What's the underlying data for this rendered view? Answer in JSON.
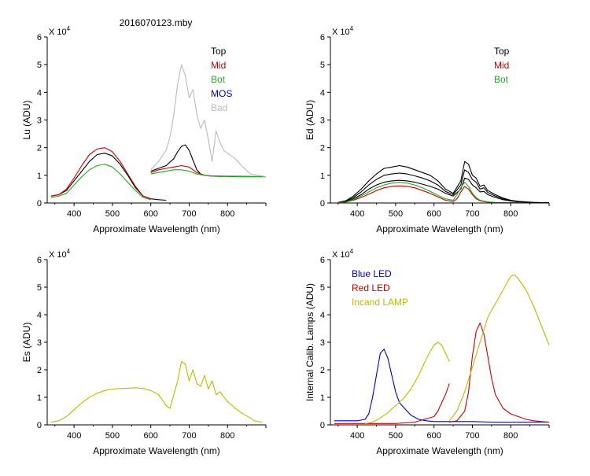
{
  "figure_title": "2016070123.mby",
  "chart_data": [
    {
      "id": "lu",
      "type": "line",
      "ylabel": "Lu (ADU)",
      "xlabel": "Approximate Wavelength (nm)",
      "exponent_label": "X 10",
      "exponent_power": "4",
      "xlim": [
        330,
        900
      ],
      "ylim": [
        0,
        6
      ],
      "xticks": [
        "400",
        "500",
        "600",
        "700",
        "800"
      ],
      "yticks": [
        "0",
        "1",
        "2",
        "3",
        "4",
        "5",
        "6"
      ],
      "legend": [
        "Top",
        "Mid",
        "Bot",
        "MOS",
        "Bad"
      ],
      "series": [
        {
          "name": "Top",
          "color": "#000000",
          "x": [
            340,
            360,
            380,
            400,
            420,
            440,
            460,
            480,
            500,
            520,
            540,
            560,
            580,
            600,
            620,
            640
          ],
          "y": [
            0.25,
            0.3,
            0.45,
            0.8,
            1.15,
            1.5,
            1.75,
            1.8,
            1.7,
            1.4,
            1.0,
            0.55,
            0.25,
            0.15,
            0.12,
            0.1
          ]
        },
        {
          "name": "Top",
          "color": "#000000",
          "x": [
            600,
            620,
            640,
            660,
            670,
            680,
            690,
            700,
            710,
            720,
            730,
            740,
            750,
            760,
            780,
            800,
            820,
            840,
            860,
            880,
            900
          ],
          "y": [
            1.15,
            1.25,
            1.35,
            1.6,
            1.85,
            2.05,
            2.1,
            1.9,
            1.55,
            1.2,
            1.05,
            1.0,
            0.98,
            0.97,
            0.96,
            0.96,
            0.95,
            0.95,
            0.95,
            0.95,
            0.95
          ]
        },
        {
          "name": "Mid",
          "color": "#cc0000",
          "x": [
            340,
            360,
            380,
            400,
            420,
            440,
            460,
            480,
            500,
            520,
            540,
            560,
            580,
            600
          ],
          "y": [
            0.25,
            0.3,
            0.5,
            0.9,
            1.35,
            1.75,
            1.95,
            2.0,
            1.85,
            1.5,
            1.05,
            0.6,
            0.25,
            0.15
          ]
        },
        {
          "name": "Mid",
          "color": "#cc0000",
          "x": [
            600,
            620,
            640,
            660,
            680,
            700,
            720,
            740,
            760,
            800,
            850,
            900
          ],
          "y": [
            1.1,
            1.2,
            1.25,
            1.3,
            1.35,
            1.3,
            1.1,
            1.0,
            0.98,
            0.97,
            0.96,
            0.95
          ]
        },
        {
          "name": "Bot",
          "color": "#22aa22",
          "x": [
            340,
            360,
            380,
            400,
            420,
            440,
            460,
            480,
            500,
            520,
            540,
            560,
            580,
            600
          ],
          "y": [
            0.2,
            0.25,
            0.35,
            0.65,
            0.95,
            1.2,
            1.35,
            1.4,
            1.3,
            1.05,
            0.75,
            0.45,
            0.2,
            0.12
          ]
        },
        {
          "name": "Bot",
          "color": "#22aa22",
          "x": [
            600,
            620,
            640,
            660,
            680,
            700,
            720,
            740,
            760,
            800,
            850,
            900
          ],
          "y": [
            1.05,
            1.1,
            1.15,
            1.2,
            1.2,
            1.15,
            1.05,
            1.0,
            0.97,
            0.96,
            0.95,
            0.95
          ]
        },
        {
          "name": "Bad",
          "color": "#bbbbbb",
          "x": [
            600,
            620,
            640,
            650,
            660,
            670,
            680,
            690,
            700,
            710,
            720,
            730,
            740,
            750,
            760,
            770,
            780,
            790,
            800,
            820,
            840,
            860,
            880,
            900
          ],
          "y": [
            1.2,
            1.5,
            1.9,
            2.4,
            3.2,
            4.3,
            5.0,
            4.6,
            3.8,
            4.1,
            3.2,
            2.7,
            3.0,
            2.3,
            1.5,
            2.6,
            2.2,
            1.9,
            1.8,
            1.6,
            1.3,
            1.05,
            1.0,
            0.95
          ]
        }
      ]
    },
    {
      "id": "ed",
      "type": "line",
      "ylabel": "Ed  (ADU)",
      "xlabel": "Approximate Wavelength (nm)",
      "exponent_label": "X 10",
      "exponent_power": "4",
      "xlim": [
        330,
        900
      ],
      "ylim": [
        0,
        6
      ],
      "xticks": [
        "400",
        "500",
        "600",
        "700",
        "800"
      ],
      "yticks": [
        "0",
        "1",
        "2",
        "3",
        "4",
        "5",
        "6"
      ],
      "legend": [
        "Top",
        "Mid",
        "Bot"
      ],
      "series": [
        {
          "name": "Top",
          "color": "#000000",
          "x": [
            350,
            370,
            390,
            410,
            430,
            450,
            470,
            490,
            510,
            530,
            550,
            570,
            590,
            610,
            630,
            650,
            670,
            680,
            690,
            700,
            710,
            720,
            730,
            740,
            760,
            780,
            800,
            820,
            840,
            860,
            880,
            900
          ],
          "y": [
            0.02,
            0.08,
            0.25,
            0.5,
            0.8,
            1.05,
            1.25,
            1.3,
            1.35,
            1.3,
            1.2,
            1.1,
            1.0,
            0.8,
            0.5,
            0.35,
            0.8,
            1.5,
            1.4,
            1.0,
            0.9,
            0.6,
            0.65,
            0.45,
            0.3,
            0.18,
            0.1,
            0.06,
            0.04,
            0.02,
            0.01,
            0.01
          ]
        },
        {
          "name": "Top",
          "color": "#000000",
          "x": [
            350,
            370,
            390,
            410,
            430,
            450,
            470,
            490,
            510,
            530,
            550,
            570,
            590,
            610,
            630,
            650,
            670,
            680,
            690,
            700,
            710,
            720,
            730,
            740,
            760,
            780,
            800,
            820,
            840,
            860,
            880,
            900
          ],
          "y": [
            0.01,
            0.06,
            0.2,
            0.4,
            0.65,
            0.85,
            1.0,
            1.05,
            1.08,
            1.05,
            0.98,
            0.9,
            0.8,
            0.65,
            0.42,
            0.3,
            0.65,
            1.2,
            1.1,
            0.85,
            0.75,
            0.5,
            0.55,
            0.38,
            0.25,
            0.15,
            0.08,
            0.05,
            0.03,
            0.02,
            0.01,
            0.01
          ]
        },
        {
          "name": "Top",
          "color": "#000000",
          "x": [
            350,
            370,
            390,
            410,
            430,
            450,
            470,
            490,
            510,
            530,
            550,
            570,
            590,
            610,
            630,
            650,
            670,
            680,
            690,
            700,
            710,
            720,
            730,
            740,
            760,
            780,
            800,
            820,
            840,
            860,
            880,
            900
          ],
          "y": [
            0.01,
            0.04,
            0.15,
            0.3,
            0.5,
            0.65,
            0.75,
            0.8,
            0.82,
            0.8,
            0.75,
            0.68,
            0.6,
            0.5,
            0.35,
            0.25,
            0.5,
            0.9,
            0.85,
            0.65,
            0.55,
            0.4,
            0.42,
            0.3,
            0.2,
            0.12,
            0.07,
            0.04,
            0.02,
            0.01,
            0.01,
            0.01
          ]
        },
        {
          "name": "Mid",
          "color": "#cc0000",
          "x": [
            350,
            370,
            390,
            410,
            430,
            450,
            470,
            490,
            510,
            530,
            550,
            570,
            590,
            610,
            630,
            650,
            660,
            670,
            680,
            690,
            700,
            710,
            720,
            740,
            760,
            800,
            850,
            900
          ],
          "y": [
            0.01,
            0.03,
            0.1,
            0.2,
            0.32,
            0.45,
            0.55,
            0.6,
            0.62,
            0.6,
            0.55,
            0.45,
            0.35,
            0.22,
            0.1,
            0.05,
            0.15,
            0.4,
            0.6,
            0.5,
            0.3,
            0.15,
            0.08,
            0.03,
            0.01,
            0.01,
            0.0,
            0.0
          ]
        },
        {
          "name": "Bot",
          "color": "#22aa22",
          "x": [
            350,
            370,
            390,
            410,
            430,
            450,
            470,
            490,
            510,
            530,
            550,
            570,
            590,
            610,
            630,
            650,
            660,
            670,
            680,
            690,
            700,
            710,
            720,
            740,
            760,
            800,
            850,
            900
          ],
          "y": [
            0.01,
            0.03,
            0.12,
            0.25,
            0.4,
            0.55,
            0.65,
            0.72,
            0.75,
            0.72,
            0.65,
            0.55,
            0.42,
            0.28,
            0.15,
            0.1,
            0.3,
            0.55,
            0.75,
            0.6,
            0.35,
            0.2,
            0.1,
            0.04,
            0.02,
            0.01,
            0.0,
            0.0
          ]
        }
      ]
    },
    {
      "id": "es",
      "type": "line",
      "ylabel": "Es  (ADU)",
      "xlabel": "Approximate Wavelength (nm)",
      "exponent_label": "X 10",
      "exponent_power": "4",
      "xlim": [
        330,
        900
      ],
      "ylim": [
        0,
        6
      ],
      "xticks": [
        "400",
        "500",
        "600",
        "700",
        "800"
      ],
      "yticks": [
        "0",
        "1",
        "2",
        "3",
        "4",
        "5",
        "6"
      ],
      "legend": [],
      "series": [
        {
          "name": "Es",
          "color": "#bbbb00",
          "x": [
            340,
            360,
            380,
            400,
            420,
            440,
            460,
            480,
            500,
            520,
            540,
            560,
            580,
            600,
            620,
            640,
            650,
            660,
            670,
            680,
            690,
            700,
            710,
            720,
            730,
            740,
            750,
            760,
            770,
            780,
            800,
            820,
            840,
            860,
            870,
            880,
            890
          ],
          "y": [
            0.1,
            0.15,
            0.3,
            0.55,
            0.8,
            1.0,
            1.15,
            1.25,
            1.3,
            1.32,
            1.33,
            1.35,
            1.32,
            1.25,
            1.1,
            0.7,
            0.6,
            1.1,
            1.6,
            2.3,
            2.2,
            1.6,
            2.0,
            1.5,
            1.4,
            1.8,
            1.3,
            1.6,
            1.1,
            1.2,
            0.85,
            0.6,
            0.4,
            0.25,
            0.15,
            0.12,
            0.1
          ]
        }
      ]
    },
    {
      "id": "lamps",
      "type": "line",
      "ylabel": "Internal Calib. Lamps (ADU)",
      "xlabel": "Approximate Wavelength (nm)",
      "exponent_label": "X 10",
      "exponent_power": "4",
      "xlim": [
        330,
        900
      ],
      "ylim": [
        0,
        6
      ],
      "xticks": [
        "400",
        "500",
        "600",
        "700",
        "800"
      ],
      "yticks": [
        "0",
        "1",
        "2",
        "3",
        "4",
        "5",
        "6"
      ],
      "legend": [
        "Blue LED",
        "Red LED",
        "Incand LAMP"
      ],
      "series": [
        {
          "name": "Blue LED",
          "color": "#0000cc",
          "x": [
            340,
            400,
            420,
            430,
            440,
            450,
            460,
            470,
            480,
            490,
            500,
            510,
            520,
            530,
            540,
            560,
            580,
            600,
            650,
            700,
            750,
            800,
            850,
            900
          ],
          "y": [
            0.15,
            0.15,
            0.2,
            0.4,
            1.0,
            1.8,
            2.6,
            2.75,
            2.4,
            1.8,
            1.2,
            0.8,
            0.65,
            0.5,
            0.35,
            0.2,
            0.15,
            0.12,
            0.12,
            0.12,
            0.1,
            0.1,
            0.1,
            0.1
          ]
        },
        {
          "name": "Red LED",
          "color": "#cc0000",
          "x": [
            340,
            400,
            450,
            500,
            550,
            600,
            610,
            620,
            630,
            640
          ],
          "y": [
            0.05,
            0.05,
            0.05,
            0.05,
            0.1,
            0.3,
            0.5,
            0.8,
            1.1,
            1.5
          ]
        },
        {
          "name": "Red LED",
          "color": "#cc0000",
          "x": [
            640,
            660,
            680,
            690,
            700,
            710,
            720,
            730,
            740,
            750,
            760,
            780,
            800,
            820,
            840,
            860,
            880,
            900
          ],
          "y": [
            0.1,
            0.15,
            0.5,
            1.2,
            2.5,
            3.4,
            3.7,
            3.3,
            2.5,
            1.7,
            1.1,
            0.6,
            0.4,
            0.3,
            0.2,
            0.15,
            0.12,
            0.1
          ]
        },
        {
          "name": "Incand LAMP",
          "color": "#bbbb00",
          "x": [
            420,
            440,
            460,
            480,
            500,
            520,
            540,
            560,
            580,
            600,
            610,
            620,
            630,
            640
          ],
          "y": [
            0.05,
            0.1,
            0.25,
            0.45,
            0.7,
            0.95,
            1.3,
            1.8,
            2.4,
            2.9,
            3.0,
            2.9,
            2.6,
            2.3
          ]
        },
        {
          "name": "Incand LAMP",
          "color": "#bbbb00",
          "x": [
            640,
            660,
            680,
            700,
            720,
            740,
            760,
            780,
            800,
            810,
            820,
            840,
            860,
            880,
            900
          ],
          "y": [
            0.15,
            0.5,
            1.2,
            2.1,
            3.0,
            3.9,
            4.4,
            4.9,
            5.4,
            5.45,
            5.3,
            4.9,
            4.3,
            3.6,
            2.9
          ]
        }
      ]
    }
  ]
}
